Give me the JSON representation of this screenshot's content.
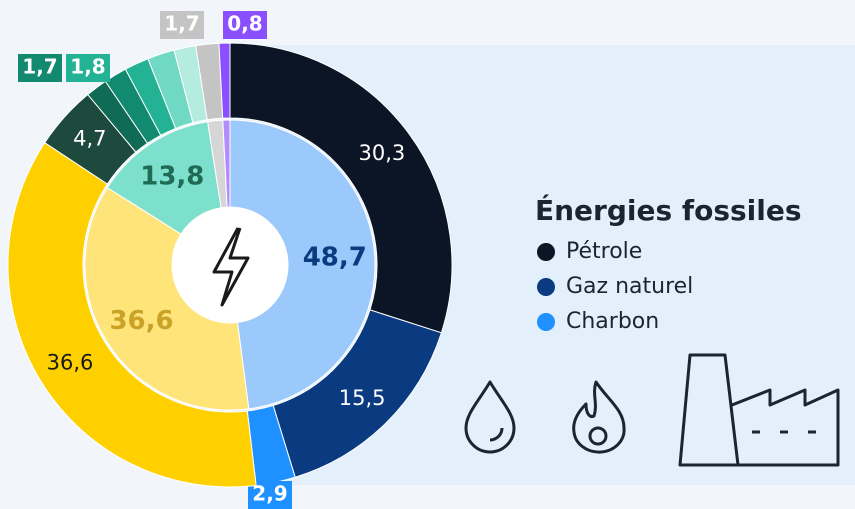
{
  "chart_data": {
    "type": "donut",
    "legend_title": "Énergies fossiles",
    "legend": [
      "Pétrole",
      "Gaz naturel",
      "Charbon"
    ],
    "outer": {
      "values": [
        30.3,
        15.5,
        2.9,
        36.6,
        4.7,
        1.6,
        1.7,
        1.8,
        2.0,
        1.6,
        1.7,
        0.8
      ],
      "value_labels": [
        "30,3",
        "15,5",
        "2,9",
        "36,6",
        "4,7",
        null,
        "1,7",
        "1,8",
        null,
        null,
        "1,7",
        "0,8"
      ],
      "colors": [
        "#0b1526",
        "#0a3a80",
        "#1e90ff",
        "#ffd000",
        "#1e4a3e",
        "#0f6b55",
        "#128a70",
        "#23b394",
        "#6fd9c4",
        "#b4ece0",
        "#c4c4c4",
        "#8a4fff"
      ]
    },
    "inner": {
      "values": [
        48.7,
        36.6,
        13.8,
        1.7,
        0.8
      ],
      "value_labels": [
        "48,7",
        "36,6",
        "13,8",
        null,
        null
      ],
      "colors": [
        "#9cc9fb",
        "#ffe47a",
        "#7de0cc",
        "#d6d6d6",
        "#b48cff"
      ],
      "label_colors": [
        "#0a3a80",
        "#c9a227",
        "#1f6b55",
        "#555",
        "#555"
      ]
    }
  }
}
